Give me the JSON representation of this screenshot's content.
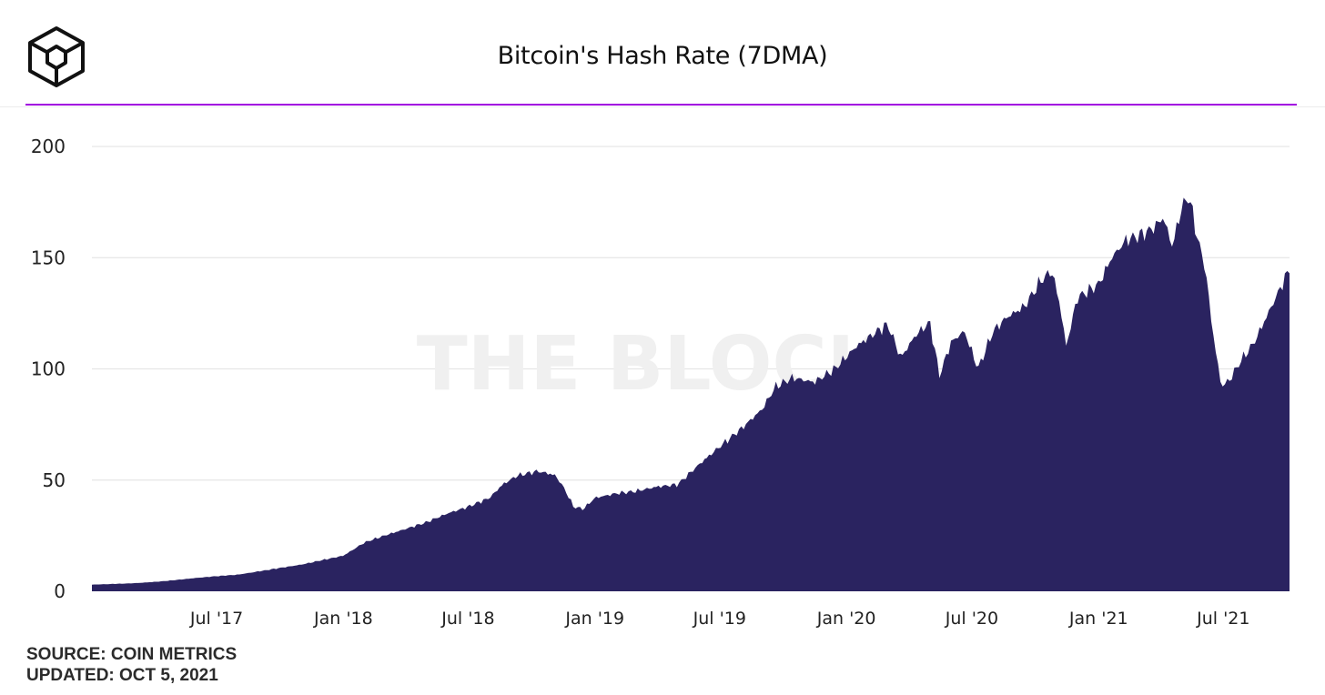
{
  "header": {
    "title": "Bitcoin's Hash Rate (7DMA)",
    "accent_color": "#a100e0",
    "logo_icon": "the-block-cube-logo"
  },
  "watermark": "THE BLOCK",
  "footer": {
    "source": "SOURCE: COIN METRICS",
    "updated": "UPDATED: OCT 5, 2021"
  },
  "chart_data": {
    "type": "area",
    "title": "Bitcoin's Hash Rate (7DMA)",
    "xlabel": "",
    "ylabel": "",
    "ylim": [
      0,
      200
    ],
    "yticks": [
      0,
      50,
      100,
      150,
      200
    ],
    "xlim": [
      "2017-01-01",
      "2021-10-05"
    ],
    "xticks": [
      {
        "date": "2017-07-01",
        "label": "Jul '17"
      },
      {
        "date": "2018-01-01",
        "label": "Jan '18"
      },
      {
        "date": "2018-07-01",
        "label": "Jul '18"
      },
      {
        "date": "2019-01-01",
        "label": "Jan '19"
      },
      {
        "date": "2019-07-01",
        "label": "Jul '19"
      },
      {
        "date": "2020-01-01",
        "label": "Jan '20"
      },
      {
        "date": "2020-07-01",
        "label": "Jul '20"
      },
      {
        "date": "2021-01-01",
        "label": "Jan '21"
      },
      {
        "date": "2021-07-01",
        "label": "Jul '21"
      }
    ],
    "grid": true,
    "fill_color": "#2a2360",
    "series": [
      {
        "points": [
          [
            "2017-01-01",
            3
          ],
          [
            "2017-02-01",
            3.3
          ],
          [
            "2017-03-01",
            3.6
          ],
          [
            "2017-04-01",
            4.2
          ],
          [
            "2017-05-01",
            5
          ],
          [
            "2017-06-01",
            6
          ],
          [
            "2017-07-01",
            6.8
          ],
          [
            "2017-08-01",
            7.5
          ],
          [
            "2017-09-01",
            9
          ],
          [
            "2017-10-01",
            10.5
          ],
          [
            "2017-11-01",
            12
          ],
          [
            "2017-12-01",
            14
          ],
          [
            "2018-01-01",
            16
          ],
          [
            "2018-02-01",
            22
          ],
          [
            "2018-03-01",
            25
          ],
          [
            "2018-04-01",
            28
          ],
          [
            "2018-05-01",
            31
          ],
          [
            "2018-06-01",
            35
          ],
          [
            "2018-07-01",
            38
          ],
          [
            "2018-08-01",
            42
          ],
          [
            "2018-08-20",
            48
          ],
          [
            "2018-09-10",
            52
          ],
          [
            "2018-09-25",
            53
          ],
          [
            "2018-10-10",
            54
          ],
          [
            "2018-10-25",
            53
          ],
          [
            "2018-11-05",
            52
          ],
          [
            "2018-11-18",
            46
          ],
          [
            "2018-12-01",
            38
          ],
          [
            "2018-12-15",
            37
          ],
          [
            "2019-01-01",
            42
          ],
          [
            "2019-02-01",
            44
          ],
          [
            "2019-03-01",
            45
          ],
          [
            "2019-04-01",
            47
          ],
          [
            "2019-05-01",
            48
          ],
          [
            "2019-06-01",
            57
          ],
          [
            "2019-07-01",
            65
          ],
          [
            "2019-08-01",
            73
          ],
          [
            "2019-09-01",
            82
          ],
          [
            "2019-09-20",
            92
          ],
          [
            "2019-10-15",
            96
          ],
          [
            "2019-11-15",
            94
          ],
          [
            "2019-12-15",
            100
          ],
          [
            "2020-01-15",
            110
          ],
          [
            "2020-02-15",
            117
          ],
          [
            "2020-03-01",
            120
          ],
          [
            "2020-03-20",
            105
          ],
          [
            "2020-04-10",
            115
          ],
          [
            "2020-05-01",
            121
          ],
          [
            "2020-05-15",
            97
          ],
          [
            "2020-06-01",
            112
          ],
          [
            "2020-06-20",
            117
          ],
          [
            "2020-07-10",
            100
          ],
          [
            "2020-08-01",
            117
          ],
          [
            "2020-08-20",
            123
          ],
          [
            "2020-09-15",
            128
          ],
          [
            "2020-10-10",
            140
          ],
          [
            "2020-10-25",
            144
          ],
          [
            "2020-11-05",
            130
          ],
          [
            "2020-11-15",
            110
          ],
          [
            "2020-12-01",
            132
          ],
          [
            "2021-01-01",
            138
          ],
          [
            "2021-01-20",
            150
          ],
          [
            "2021-02-10",
            158
          ],
          [
            "2021-03-01",
            160
          ],
          [
            "2021-03-20",
            163
          ],
          [
            "2021-04-05",
            168
          ],
          [
            "2021-04-18",
            155
          ],
          [
            "2021-05-01",
            172
          ],
          [
            "2021-05-12",
            178
          ],
          [
            "2021-05-25",
            158
          ],
          [
            "2021-06-05",
            145
          ],
          [
            "2021-06-15",
            118
          ],
          [
            "2021-06-28",
            92
          ],
          [
            "2021-07-10",
            95
          ],
          [
            "2021-07-25",
            103
          ],
          [
            "2021-08-15",
            112
          ],
          [
            "2021-09-01",
            123
          ],
          [
            "2021-09-15",
            132
          ],
          [
            "2021-10-05",
            145
          ]
        ]
      }
    ]
  }
}
